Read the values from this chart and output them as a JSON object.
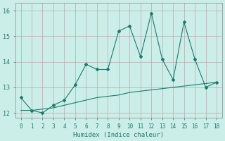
{
  "xlabel": "Humidex (Indice chaleur)",
  "x": [
    0,
    1,
    2,
    3,
    4,
    5,
    6,
    7,
    8,
    9,
    10,
    11,
    12,
    13,
    14,
    15,
    16,
    17,
    18
  ],
  "y_line": [
    12.6,
    12.1,
    12.0,
    12.3,
    12.5,
    13.1,
    13.9,
    13.7,
    13.7,
    15.2,
    15.4,
    14.2,
    15.9,
    14.1,
    13.3,
    15.55,
    14.1,
    13.0,
    13.2
  ],
  "y_trend": [
    12.1,
    12.1,
    12.15,
    12.2,
    12.3,
    12.4,
    12.5,
    12.6,
    12.65,
    12.7,
    12.8,
    12.85,
    12.9,
    12.95,
    13.0,
    13.05,
    13.1,
    13.15,
    13.2
  ],
  "line_color": "#1a7a6e",
  "bg_color": "#cceee8",
  "grid_color": "#b8a8a8",
  "ylim": [
    11.8,
    16.3
  ],
  "xlim": [
    -0.5,
    18.5
  ],
  "yticks": [
    12,
    13,
    14,
    15,
    16
  ],
  "xtick_fontsize": 5.5,
  "ytick_fontsize": 6.0,
  "xlabel_fontsize": 6.5
}
